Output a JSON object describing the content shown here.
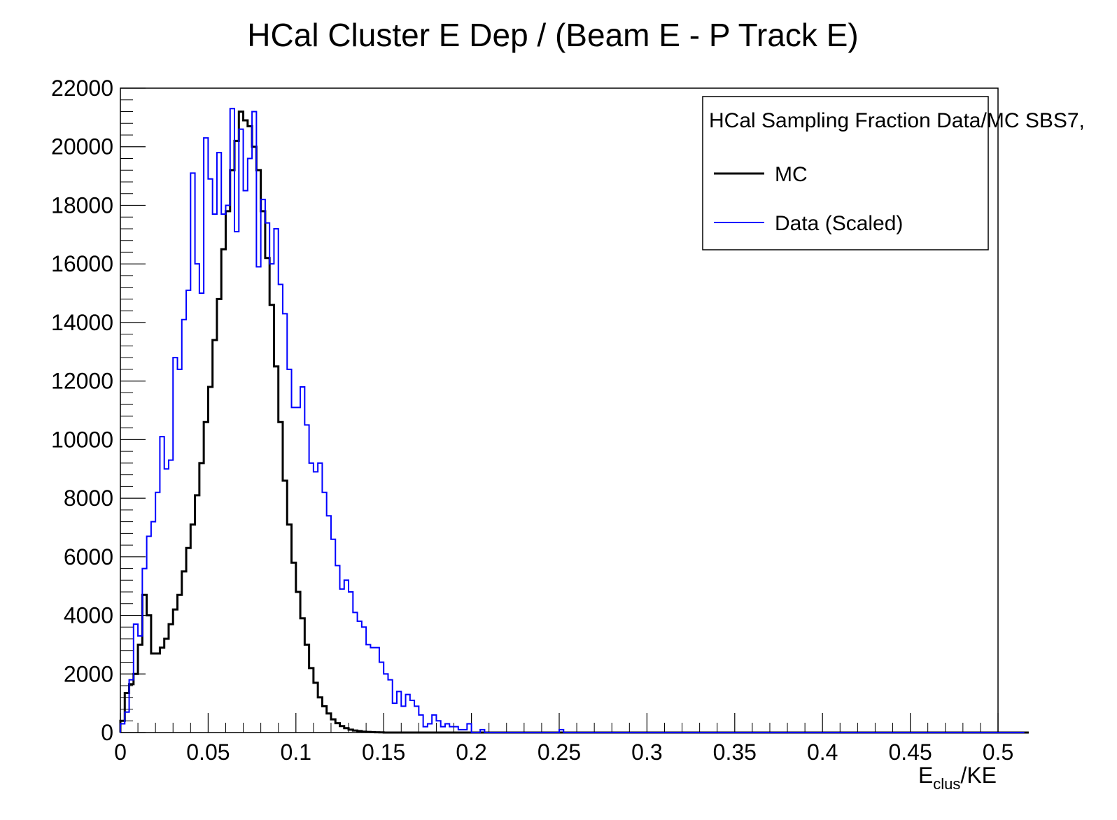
{
  "chart_data": {
    "type": "line",
    "title": "HCal Cluster E Dep / (Beam E - P Track E)",
    "xlabel_main": "E",
    "xlabel_sub": "clus",
    "xlabel_rest": "/KE",
    "ylabel": "",
    "xlim": [
      0,
      0.5
    ],
    "ylim": [
      0,
      22000
    ],
    "x_ticks": [
      0,
      0.05,
      0.1,
      0.15,
      0.2,
      0.25,
      0.3,
      0.35,
      0.4,
      0.45,
      0.5
    ],
    "x_tick_labels": [
      "0",
      "0.05",
      "0.1",
      "0.15",
      "0.2",
      "0.25",
      "0.3",
      "0.35",
      "0.4",
      "0.45",
      "0.5"
    ],
    "y_ticks": [
      0,
      2000,
      4000,
      6000,
      8000,
      10000,
      12000,
      14000,
      16000,
      18000,
      20000,
      22000
    ],
    "y_tick_labels": [
      "0",
      "2000",
      "4000",
      "6000",
      "8000",
      "10000",
      "12000",
      "14000",
      "16000",
      "18000",
      "20000",
      "22000"
    ],
    "bin_width": 0.0025,
    "legend": {
      "header": "HCal Sampling Fraction Data/MC SBS7,",
      "placement": "top-right"
    },
    "series": [
      {
        "name": "MC",
        "color": "#000000",
        "values": [
          400,
          1350,
          1650,
          2000,
          3000,
          4700,
          4000,
          2700,
          2700,
          2900,
          3200,
          3700,
          4200,
          4700,
          5500,
          6300,
          7100,
          8100,
          9200,
          10600,
          11800,
          13400,
          14800,
          16500,
          17800,
          19200,
          20200,
          21200,
          20900,
          20700,
          20000,
          19200,
          17800,
          16200,
          14600,
          12500,
          10600,
          8600,
          7100,
          5800,
          4800,
          3900,
          3000,
          2200,
          1700,
          1200,
          900,
          650,
          450,
          320,
          220,
          150,
          100,
          70,
          50,
          30,
          20,
          15,
          10,
          5,
          0,
          0,
          0,
          0,
          0,
          0,
          0,
          0,
          0,
          0,
          0,
          0,
          0,
          0,
          0,
          0,
          0,
          0,
          0,
          0,
          0,
          0,
          0,
          0,
          0,
          0,
          0,
          0,
          0,
          0,
          0,
          0,
          0,
          0,
          0,
          0,
          0,
          0,
          0,
          0,
          0,
          0,
          0,
          0,
          0,
          0,
          0,
          0,
          0,
          0,
          0,
          0,
          0,
          0,
          0,
          0,
          0,
          0,
          0,
          0,
          0,
          0,
          0,
          0,
          0,
          0,
          0,
          0,
          0,
          0,
          0,
          0,
          0,
          0,
          0,
          0,
          0,
          0,
          0,
          0,
          0,
          0,
          0,
          0,
          0,
          0,
          0,
          0,
          0,
          0,
          0,
          0,
          0,
          0,
          0,
          0,
          0,
          0,
          0,
          0,
          0,
          0,
          0,
          0,
          0,
          0,
          0,
          0,
          0,
          0,
          0,
          0,
          0,
          0,
          0,
          0,
          0,
          0,
          0,
          0,
          0,
          0,
          0,
          0,
          0,
          0,
          0,
          0,
          0,
          0,
          0,
          0,
          0,
          0,
          0,
          0,
          0,
          0,
          0,
          0,
          0,
          0,
          0,
          0,
          0,
          0,
          0
        ]
      },
      {
        "name": "Data (Scaled)",
        "color": "#0000ff",
        "values": [
          300,
          700,
          1800,
          3700,
          3300,
          5600,
          6700,
          7200,
          8200,
          10100,
          9000,
          9300,
          12800,
          12400,
          14100,
          15100,
          19100,
          16000,
          15000,
          20300,
          18900,
          17700,
          19800,
          17700,
          18000,
          21300,
          17100,
          20600,
          18500,
          19600,
          21200,
          15900,
          18200,
          17400,
          16000,
          17200,
          15300,
          14300,
          12400,
          11100,
          11100,
          11800,
          10500,
          9200,
          8900,
          9200,
          8200,
          7400,
          6600,
          5700,
          4900,
          5200,
          4800,
          4100,
          3800,
          3600,
          3000,
          2900,
          2900,
          2400,
          2000,
          1800,
          1000,
          1400,
          900,
          1300,
          1100,
          900,
          600,
          200,
          300,
          600,
          400,
          200,
          300,
          200,
          200,
          100,
          100,
          300,
          0,
          0,
          100,
          0,
          0,
          0,
          0,
          0,
          0,
          0,
          0,
          0,
          0,
          0,
          0,
          0,
          0,
          0,
          0,
          0,
          100,
          0,
          0,
          0,
          0,
          0,
          0,
          0,
          0,
          0,
          0,
          0,
          0,
          0,
          0,
          0,
          0,
          0,
          0,
          0,
          0,
          0,
          0,
          0,
          0,
          0,
          0,
          0,
          0,
          0,
          0,
          0,
          0,
          0,
          0,
          0,
          0,
          0,
          0,
          0,
          0,
          0,
          0,
          0,
          0,
          0,
          0,
          0,
          0,
          0,
          0,
          0,
          0,
          0,
          0,
          0,
          0,
          0,
          0,
          0,
          0,
          0,
          0,
          0,
          0,
          0,
          0,
          0,
          0,
          0,
          0,
          0,
          0,
          0,
          0,
          0,
          0,
          0,
          0,
          0,
          0,
          0,
          0,
          0,
          0,
          0,
          0,
          0,
          0,
          0,
          0,
          0,
          0,
          0,
          0,
          0,
          0,
          0,
          0,
          0,
          0,
          0,
          0,
          0,
          0,
          0
        ]
      }
    ],
    "grid": false
  }
}
